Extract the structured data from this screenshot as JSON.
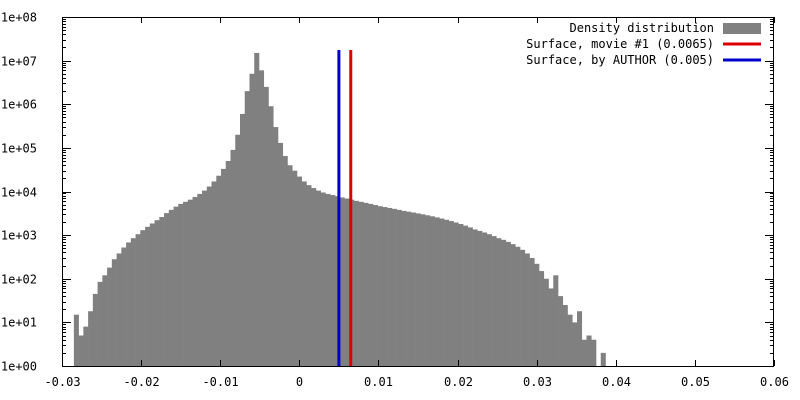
{
  "chart_data": {
    "type": "bar",
    "title": "",
    "xlabel": "",
    "ylabel": "",
    "y_scale": "log",
    "grid": false,
    "legend_position": "top-right",
    "xlim": [
      -0.03,
      0.06
    ],
    "ylim": [
      1,
      100000000
    ],
    "x_ticks": [
      "-0.03",
      "-0.02",
      "-0.01",
      "0",
      "0.01",
      "0.02",
      "0.03",
      "0.04",
      "0.05",
      "0.06"
    ],
    "x_tick_values": [
      -0.03,
      -0.02,
      -0.01,
      0,
      0.01,
      0.02,
      0.03,
      0.04,
      0.05,
      0.06
    ],
    "y_ticks": [
      "1e+00",
      "1e+01",
      "1e+02",
      "1e+03",
      "1e+04",
      "1e+05",
      "1e+06",
      "1e+07",
      "1e+08"
    ],
    "y_tick_values": [
      1,
      10,
      100,
      1000,
      10000,
      100000,
      1000000,
      10000000,
      100000000
    ],
    "histogram": {
      "name": "Density distribution",
      "color": "#808080",
      "bin_width": 0.0006,
      "bin_start": -0.0285,
      "values": [
        15,
        5,
        8,
        18,
        45,
        85,
        120,
        180,
        280,
        380,
        520,
        680,
        850,
        1050,
        1300,
        1550,
        1850,
        2200,
        2600,
        3200,
        3800,
        4500,
        5200,
        5800,
        6500,
        7500,
        8800,
        10500,
        13000,
        17000,
        23000,
        33000,
        50000,
        90000,
        200000,
        600000,
        2000000,
        5000000,
        15000000,
        6000000,
        2500000,
        900000,
        300000,
        130000,
        65000,
        40000,
        30000,
        22000,
        17000,
        14000,
        12000,
        10500,
        9500,
        8800,
        8300,
        7800,
        7300,
        6900,
        6500,
        6100,
        5800,
        5500,
        5200,
        4900,
        4600,
        4400,
        4200,
        4000,
        3800,
        3600,
        3450,
        3300,
        3150,
        3000,
        2850,
        2700,
        2550,
        2400,
        2250,
        2100,
        1950,
        1800,
        1650,
        1500,
        1350,
        1250,
        1150,
        1050,
        950,
        850,
        780,
        700,
        620,
        540,
        460,
        380,
        300,
        220,
        150,
        100,
        60,
        120,
        40,
        25,
        15,
        10,
        18,
        4,
        5,
        4,
        1,
        2,
        1
      ]
    },
    "lines": [
      {
        "name": "Surface, movie #1 (0.0065)",
        "x": 0.0065,
        "color": "#dd0000"
      },
      {
        "name": "Surface, by AUTHOR (0.005)",
        "x": 0.005,
        "color": "#0000cc"
      }
    ]
  }
}
